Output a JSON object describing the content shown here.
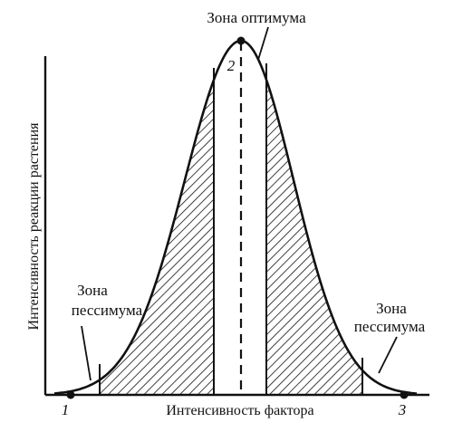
{
  "diagram": {
    "y_axis_label": "Интенсивность реакции растения",
    "x_axis_label": "Интенсивность фактора",
    "optimum_zone_label": "Зона оптимума",
    "pessimum_left_label_line1": "Зона",
    "pessimum_left_label_line2": "пессимума",
    "pessimum_right_label_line1": "Зона",
    "pessimum_right_label_line2": "пессимума",
    "point_labels": [
      "1",
      "2",
      "3"
    ],
    "colors": {
      "ink": "#111111",
      "background": "#ffffff"
    }
  }
}
